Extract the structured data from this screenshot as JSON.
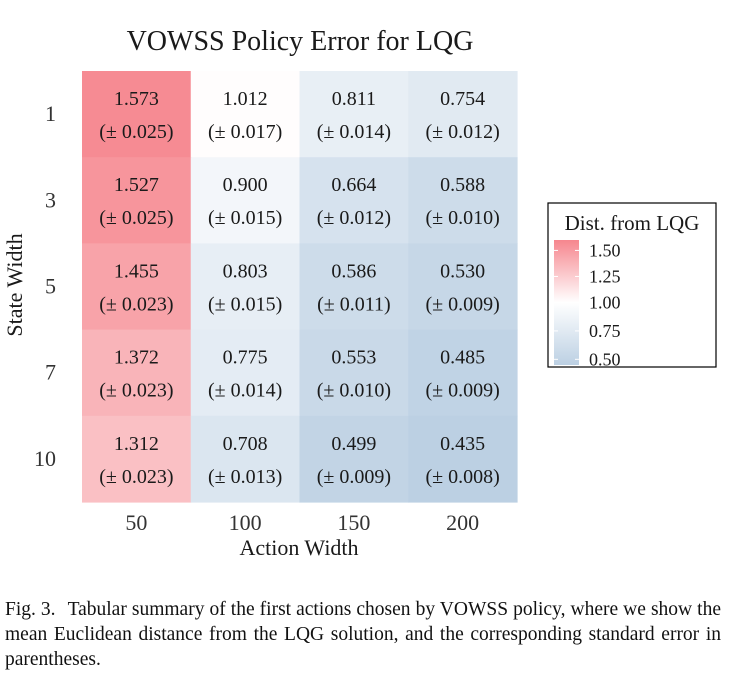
{
  "chart_data": {
    "type": "heatmap",
    "title": "VOWSS Policy Error for LQG",
    "xlabel": "Action Width",
    "ylabel": "State Width",
    "x_categories": [
      "50",
      "100",
      "150",
      "200"
    ],
    "y_categories": [
      "1",
      "3",
      "5",
      "7",
      "10"
    ],
    "values": [
      [
        1.573,
        1.012,
        0.811,
        0.754
      ],
      [
        1.527,
        0.9,
        0.664,
        0.588
      ],
      [
        1.455,
        0.803,
        0.586,
        0.53
      ],
      [
        1.372,
        0.775,
        0.553,
        0.485
      ],
      [
        1.312,
        0.708,
        0.499,
        0.435
      ]
    ],
    "value_labels": [
      [
        "1.573",
        "1.012",
        "0.811",
        "0.754"
      ],
      [
        "1.527",
        "0.900",
        "0.664",
        "0.588"
      ],
      [
        "1.455",
        "0.803",
        "0.586",
        "0.530"
      ],
      [
        "1.372",
        "0.775",
        "0.553",
        "0.485"
      ],
      [
        "1.312",
        "0.708",
        "0.499",
        "0.435"
      ]
    ],
    "error_labels": [
      [
        "(± 0.025)",
        "(± 0.017)",
        "(± 0.014)",
        "(± 0.012)"
      ],
      [
        "(± 0.025)",
        "(± 0.015)",
        "(± 0.012)",
        "(± 0.010)"
      ],
      [
        "(± 0.023)",
        "(± 0.015)",
        "(± 0.011)",
        "(± 0.009)"
      ],
      [
        "(± 0.023)",
        "(± 0.014)",
        "(± 0.010)",
        "(± 0.009)"
      ],
      [
        "(± 0.023)",
        "(± 0.013)",
        "(± 0.009)",
        "(± 0.008)"
      ]
    ],
    "colorbar": {
      "title": "Dist. from LQG",
      "ticks": [
        "1.50",
        "1.25",
        "1.00",
        "0.75",
        "0.50"
      ],
      "tick_values": [
        1.5,
        1.25,
        1.0,
        0.75,
        0.5
      ],
      "range": [
        0.45,
        1.6
      ],
      "midpoint": 1.0,
      "low_color": "#bcd0e3",
      "mid_color": "#ffffff",
      "high_color": "#f6868e",
      "placement": "right"
    },
    "grid": false
  },
  "caption": {
    "label": "Fig. 3.",
    "text": "Tabular summary of the first actions chosen by VOWSS policy, where we show the mean Euclidean distance from the LQG solution, and the corresponding standard error in parentheses."
  }
}
